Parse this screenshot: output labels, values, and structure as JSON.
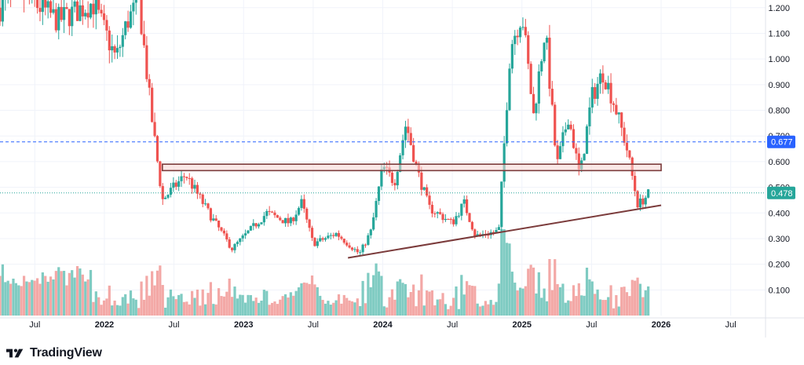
{
  "branding": {
    "logo_text": "TradingView",
    "logo_icon": "tradingview-logo-icon"
  },
  "colors": {
    "up": "#26a69a",
    "down": "#ef5350",
    "up_volume": "#7fcbc2",
    "down_volume": "#f3a8a6",
    "grid": "#f0f3fa",
    "axis_text": "#131722",
    "trendline": "#7b3b3b",
    "zone_border": "#7b3b3b",
    "zone_fill": "#f6d5d3",
    "level_badge": "#2962ff",
    "price_badge": "#26a69a"
  },
  "chart_data": {
    "type": "candlestick",
    "x_axis": {
      "ticks": [
        {
          "label": "Jul",
          "date": "2021-07",
          "bold": false
        },
        {
          "label": "2022",
          "date": "2022-01",
          "bold": true
        },
        {
          "label": "Jul",
          "date": "2022-07",
          "bold": false
        },
        {
          "label": "2023",
          "date": "2023-01",
          "bold": true
        },
        {
          "label": "Jul",
          "date": "2023-07",
          "bold": false
        },
        {
          "label": "2024",
          "date": "2024-01",
          "bold": true
        },
        {
          "label": "Jul",
          "date": "2024-07",
          "bold": false
        },
        {
          "label": "2025",
          "date": "2025-01",
          "bold": true
        },
        {
          "label": "Jul",
          "date": "2025-07",
          "bold": false
        },
        {
          "label": "2026",
          "date": "2026-01",
          "bold": true
        },
        {
          "label": "Jul",
          "date": "2026-07",
          "bold": false
        }
      ],
      "range": [
        "2021-04",
        "2026-10"
      ]
    },
    "y_axis": {
      "ticks": [
        "0.100",
        "0.200",
        "0.300",
        "0.400",
        "0.500",
        "0.600",
        "0.700",
        "0.800",
        "0.900",
        "1.000",
        "1.100",
        "1.200"
      ],
      "range": [
        0.0,
        1.23
      ]
    },
    "grid": true,
    "price_path": [
      {
        "date": "2021-04",
        "price": 1.2
      },
      {
        "date": "2021-06",
        "price": 1.25
      },
      {
        "date": "2021-09",
        "price": 1.15
      },
      {
        "date": "2021-12",
        "price": 1.22
      },
      {
        "date": "2022-02",
        "price": 1.0
      },
      {
        "date": "2022-03",
        "price": 1.15
      },
      {
        "date": "2022-04",
        "price": 1.22
      },
      {
        "date": "2022-05",
        "price": 0.8
      },
      {
        "date": "2022-06",
        "price": 0.45
      },
      {
        "date": "2022-08",
        "price": 0.55
      },
      {
        "date": "2022-10",
        "price": 0.4
      },
      {
        "date": "2022-12",
        "price": 0.26
      },
      {
        "date": "2023-03",
        "price": 0.4
      },
      {
        "date": "2023-05",
        "price": 0.36
      },
      {
        "date": "2023-06",
        "price": 0.44
      },
      {
        "date": "2023-07",
        "price": 0.28
      },
      {
        "date": "2023-09",
        "price": 0.32
      },
      {
        "date": "2023-11",
        "price": 0.24
      },
      {
        "date": "2023-12",
        "price": 0.33
      },
      {
        "date": "2024-01",
        "price": 0.58
      },
      {
        "date": "2024-02",
        "price": 0.52
      },
      {
        "date": "2024-03",
        "price": 0.75
      },
      {
        "date": "2024-04",
        "price": 0.56
      },
      {
        "date": "2024-05",
        "price": 0.42
      },
      {
        "date": "2024-07",
        "price": 0.36
      },
      {
        "date": "2024-08",
        "price": 0.44
      },
      {
        "date": "2024-09",
        "price": 0.31
      },
      {
        "date": "2024-11",
        "price": 0.33
      },
      {
        "date": "2024-12",
        "price": 1.05
      },
      {
        "date": "2025-01",
        "price": 1.18
      },
      {
        "date": "2025-02",
        "price": 0.78
      },
      {
        "date": "2025-03",
        "price": 1.12
      },
      {
        "date": "2025-04",
        "price": 0.58
      },
      {
        "date": "2025-05",
        "price": 0.78
      },
      {
        "date": "2025-06",
        "price": 0.54
      },
      {
        "date": "2025-07",
        "price": 0.85
      },
      {
        "date": "2025-08",
        "price": 0.95
      },
      {
        "date": "2025-09",
        "price": 0.82
      },
      {
        "date": "2025-10",
        "price": 0.66
      },
      {
        "date": "2025-11",
        "price": 0.43
      },
      {
        "date": "2025-12",
        "price": 0.478
      }
    ],
    "annotations": {
      "horizontal_level": {
        "value": 0.677,
        "label": "0.677",
        "style": "dashed"
      },
      "current_price": {
        "value": 0.478,
        "label": "0.478",
        "style": "dotted"
      },
      "resistance_zone": {
        "from": 0.565,
        "to": 0.59,
        "start": "2022-06",
        "end": "2026-01"
      },
      "trendline": {
        "start": {
          "date": "2023-10",
          "price": 0.225
        },
        "end": {
          "date": "2026-01",
          "price": 0.43
        }
      }
    }
  }
}
